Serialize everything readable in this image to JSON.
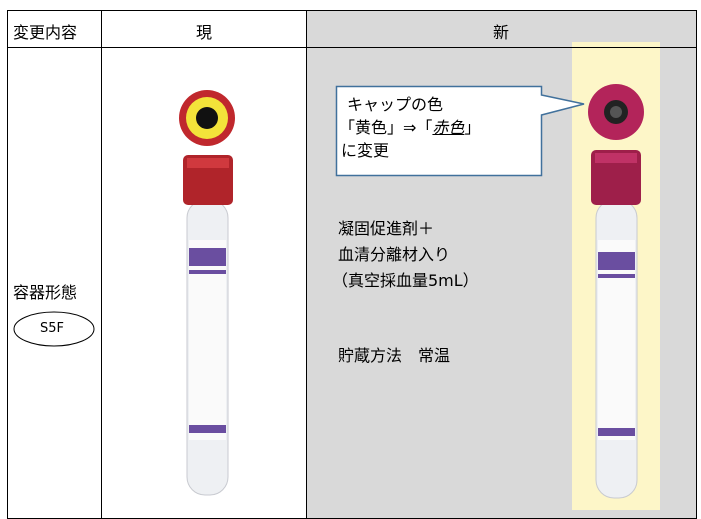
{
  "table": {
    "header": [
      "変更内容",
      "現",
      "新"
    ],
    "row_label": "容器形態",
    "badge": "S5F",
    "callout": {
      "line1": "キャップの色",
      "line2_pre": "「黄色」⇒「",
      "line2_em": "赤色",
      "line2_post": "」",
      "line3": "に変更"
    },
    "description": [
      "凝固促進剤＋",
      "血清分離材入り",
      "（真空採血量5mL）"
    ],
    "storage": "貯蔵方法　常温"
  }
}
